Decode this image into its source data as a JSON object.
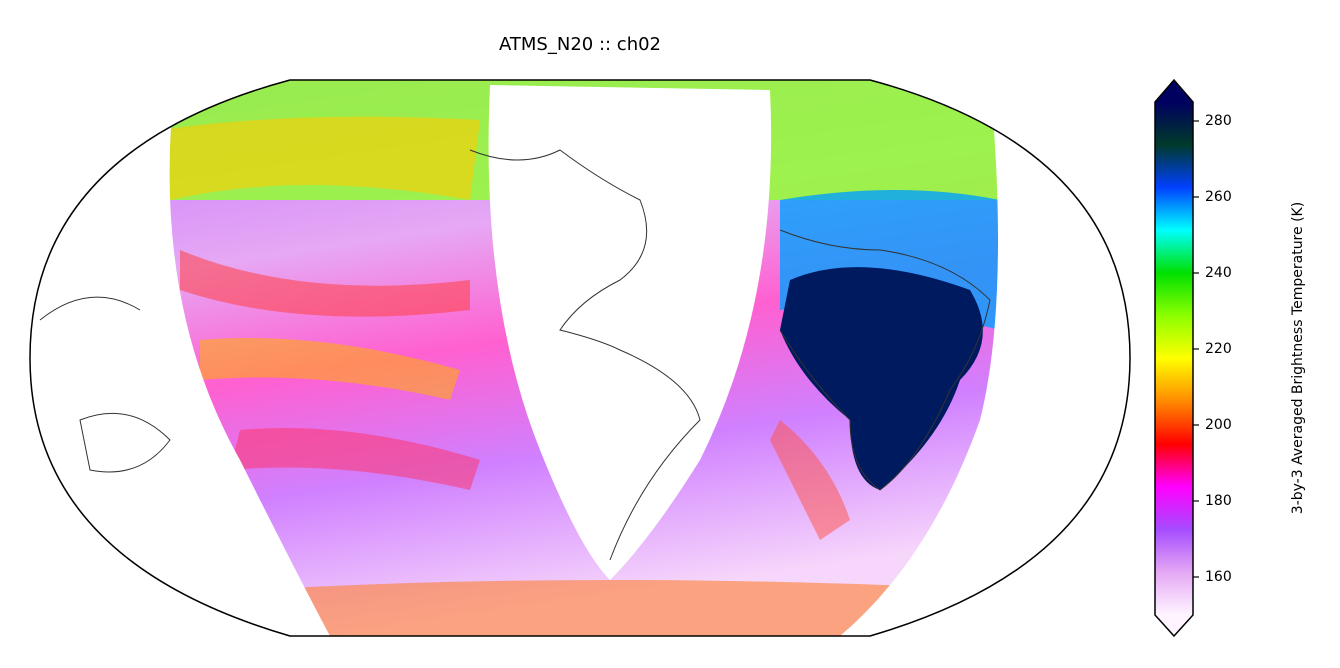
{
  "title": "ATMS_N20 :: ch02",
  "colorbar": {
    "label": "3-by-3 Averaged Brightness Temperature (K)",
    "clim": [
      150,
      285
    ],
    "ticks": [
      160,
      180,
      200,
      220,
      240,
      260,
      280
    ],
    "colormap": [
      "#fff4ff",
      "#e4a8f4",
      "#a64cff",
      "#ff00ff",
      "#ff0000",
      "#ff8a00",
      "#ffff00",
      "#8cff00",
      "#00e000",
      "#00ffff",
      "#0040ff",
      "#003a2a",
      "#000060"
    ],
    "extend": "both"
  }
}
